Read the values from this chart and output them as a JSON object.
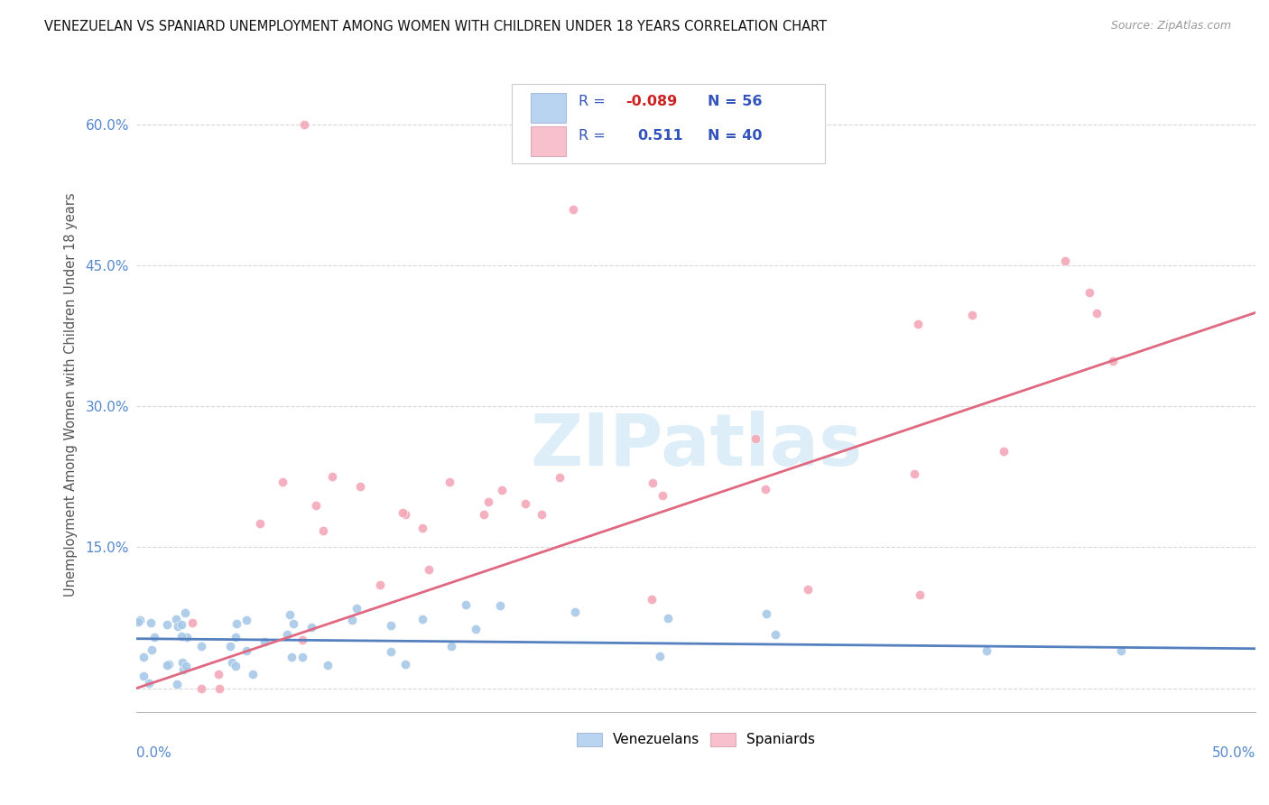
{
  "title": "VENEZUELAN VS SPANIARD UNEMPLOYMENT AMONG WOMEN WITH CHILDREN UNDER 18 YEARS CORRELATION CHART",
  "source": "Source: ZipAtlas.com",
  "ylabel": "Unemployment Among Women with Children Under 18 years",
  "xlim": [
    0.0,
    0.5
  ],
  "ylim": [
    -0.025,
    0.65
  ],
  "yticks": [
    0.0,
    0.15,
    0.3,
    0.45,
    0.6
  ],
  "ytick_labels": [
    "",
    "15.0%",
    "30.0%",
    "45.0%",
    "60.0%"
  ],
  "venezuelan_color": "#a8c8e8",
  "spaniard_color": "#f4a8b8",
  "venezuelan_line_color": "#5580c0",
  "spaniard_line_color": "#e06880",
  "background_color": "#ffffff",
  "legend_ven_color": "#b8d4f0",
  "legend_spa_color": "#f8c0cc",
  "watermark_color": "#ddeef8",
  "title_color": "#111111",
  "source_color": "#999999",
  "ylabel_color": "#555555",
  "tick_color": "#5588cc",
  "grid_color": "#d8d8d8",
  "legend_text_color": "#3355bb",
  "legend_neg_color": "#cc2222"
}
